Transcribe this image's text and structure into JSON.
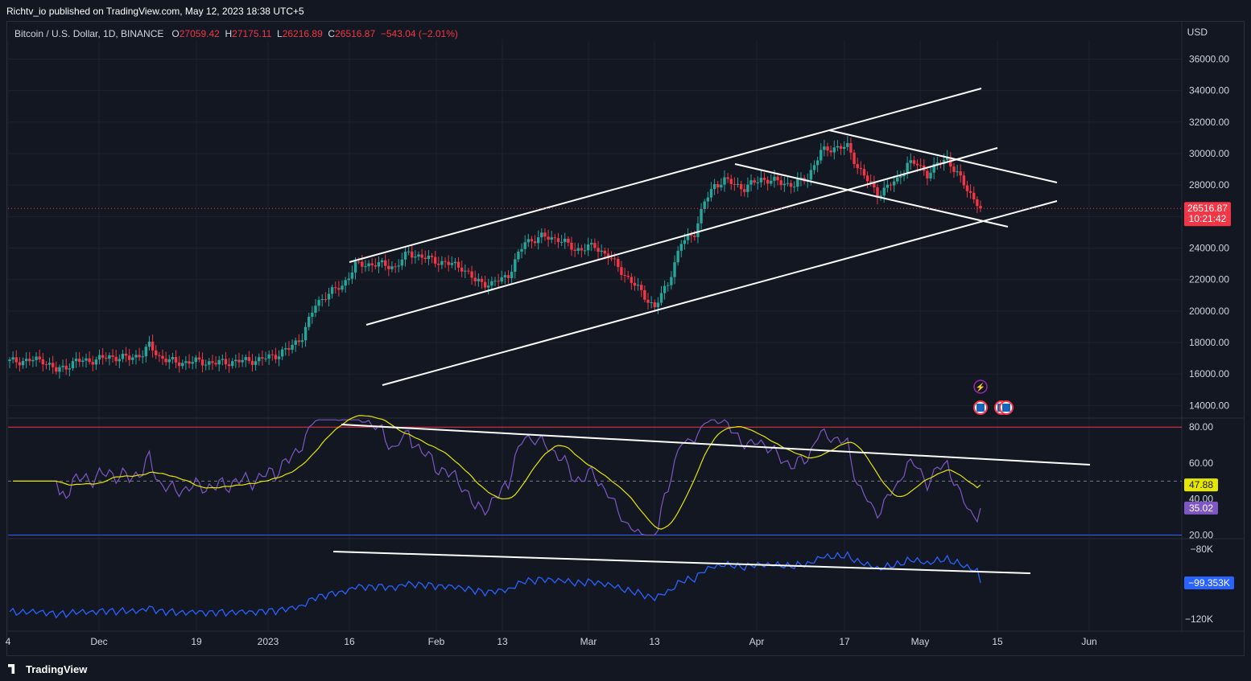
{
  "header": {
    "publisher": "Richtv_io published on TradingView.com, May 12, 2023 18:38 UTC+5"
  },
  "legend": {
    "symbol": "Bitcoin / U.S. Dollar, 1D, BINANCE",
    "o_label": "O",
    "o_value": "27059.42",
    "h_label": "H",
    "h_value": "27175.11",
    "l_label": "L",
    "l_value": "26216.89",
    "c_label": "C",
    "c_value": "26516.87",
    "change": "−543.04 (−2.01%)"
  },
  "colors": {
    "up": "#26a69a",
    "down": "#f23645",
    "rsi": "#7e57c2",
    "rsi_ma": "#e6e600",
    "obv": "#2962ff",
    "band_upper": "#f23645",
    "band_lower": "#2962ff"
  },
  "chart_data": [
    {
      "type": "candlestick",
      "currency_label": "USD",
      "y_ticks": [
        "36000.00",
        "34000.00",
        "32000.00",
        "30000.00",
        "28000.00",
        "26000.00",
        "24000.00",
        "22000.00",
        "20000.00",
        "18000.00",
        "16000.00",
        "14000.00"
      ],
      "ylim": [
        13200,
        37200
      ],
      "last_price": "26516.87",
      "countdown": "10:21:42",
      "x_labels": [
        "4",
        "Dec",
        "19",
        "2023",
        "16",
        "Feb",
        "13",
        "Mar",
        "13",
        "Apr",
        "17",
        "May",
        "15",
        "Jun"
      ],
      "trendlines_note": "ascending channel, descending wedge"
    },
    {
      "type": "line",
      "name_series": [
        "RSI",
        "RSI MA"
      ],
      "y_ticks": [
        "80.00",
        "60.00",
        "40.00",
        "20.00"
      ],
      "ylim": [
        18,
        85
      ],
      "bands": [
        80,
        50,
        20
      ],
      "rsi_value": "35.02",
      "ma_value": "47.88"
    },
    {
      "type": "line",
      "y_ticks": [
        "−80K",
        "−120K"
      ],
      "ylim": [
        -127000,
        -74000
      ],
      "obv_value": "−99.353K"
    }
  ],
  "footer": {
    "brand": "TradingView"
  },
  "ui": {
    "event_icon": "lightning-icon",
    "flag_icon": "us-flag-icon"
  }
}
